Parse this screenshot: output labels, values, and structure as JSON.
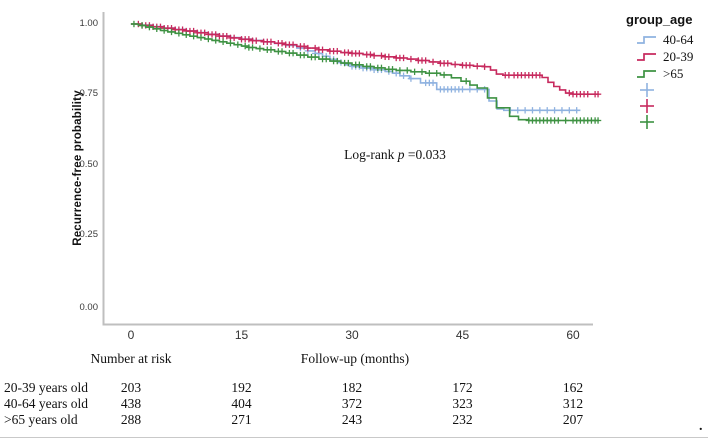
{
  "figure": {
    "footnote_period": "."
  },
  "legend": {
    "title": "group_age",
    "entries": [
      {
        "label": "40-64",
        "color": "#8FB2E0"
      },
      {
        "label": "20-39",
        "color": "#C72A5E"
      },
      {
        "label": ">65",
        "color": "#3E9243"
      }
    ]
  },
  "annotation": {
    "prefix": "Log-rank ",
    "p": "p",
    "value": " =0.033"
  },
  "risk_table": {
    "header": "Number at risk",
    "rows": [
      {
        "label": "20-39 years old",
        "values": [
          "203",
          "192",
          "182",
          "172",
          "162"
        ]
      },
      {
        "label": "40-64 years old",
        "values": [
          "438",
          "404",
          "372",
          "323",
          "312"
        ]
      },
      {
        "label": ">65 years old",
        "values": [
          "288",
          "271",
          "243",
          "232",
          "207"
        ]
      }
    ]
  },
  "chart_data": {
    "type": "line",
    "subtype": "kaplan-meier-step",
    "title": "",
    "xlabel": "Follow-up (months)",
    "ylabel": "Recurrence-free probability",
    "xlim": [
      0,
      63.5
    ],
    "ylim": [
      0,
      1
    ],
    "xticks": [
      "0",
      "15",
      "30",
      "45",
      "60"
    ],
    "xtick_values": [
      0,
      15,
      30,
      45,
      60
    ],
    "yticks": [
      "1.00",
      "0.75",
      "0.50",
      "0.25",
      "0.00"
    ],
    "ytick_values": [
      1.0,
      0.75,
      0.5,
      0.25,
      0.0
    ],
    "grid": false,
    "legend_position": "top-right",
    "axis_color": "#BFBFBF",
    "series": [
      {
        "name": "40-64",
        "color": "#8FB2E0",
        "steps": [
          [
            0,
            1
          ],
          [
            1.5,
            0.996
          ],
          [
            3,
            0.991
          ],
          [
            4.5,
            0.986
          ],
          [
            6,
            0.981
          ],
          [
            7.5,
            0.976
          ],
          [
            9,
            0.97
          ],
          [
            10.5,
            0.964
          ],
          [
            12,
            0.958
          ],
          [
            13.5,
            0.952
          ],
          [
            15,
            0.947
          ],
          [
            16.5,
            0.942
          ],
          [
            18,
            0.937
          ],
          [
            19.5,
            0.931
          ],
          [
            21,
            0.924
          ],
          [
            22.5,
            0.915
          ],
          [
            24,
            0.905
          ],
          [
            25,
            0.896
          ],
          [
            26,
            0.886
          ],
          [
            27,
            0.875
          ],
          [
            28,
            0.864
          ],
          [
            29,
            0.856
          ],
          [
            30,
            0.85
          ],
          [
            31.5,
            0.844
          ],
          [
            33,
            0.838
          ],
          [
            34.5,
            0.832
          ],
          [
            35.5,
            0.826
          ],
          [
            36.5,
            0.817
          ],
          [
            37.8,
            0.807
          ],
          [
            39.3,
            0.792
          ],
          [
            41.5,
            0.769
          ],
          [
            48.6,
            0.728
          ],
          [
            49.7,
            0.7
          ],
          [
            50.6,
            0.695
          ],
          [
            61,
            0.695
          ]
        ],
        "censors": [
          23,
          24,
          25,
          25.5,
          26.5,
          27.5,
          28.5,
          30,
          30.5,
          31,
          31.5,
          32,
          32.5,
          33,
          33.5,
          34,
          35,
          36,
          37,
          38,
          40,
          40.5,
          41,
          42,
          42.5,
          43,
          43.5,
          44,
          44.5,
          45,
          46,
          47,
          48,
          51.5,
          52.5,
          53.5,
          54.5,
          55.5,
          56.5,
          57.5,
          58.5,
          59.5,
          60.5
        ]
      },
      {
        "name": "20-39",
        "color": "#C72A5E",
        "steps": [
          [
            0,
            1
          ],
          [
            1.5,
            0.995
          ],
          [
            3,
            0.99
          ],
          [
            4.5,
            0.985
          ],
          [
            6,
            0.98
          ],
          [
            7.5,
            0.975
          ],
          [
            9,
            0.969
          ],
          [
            10.5,
            0.963
          ],
          [
            12,
            0.957
          ],
          [
            13.5,
            0.951
          ],
          [
            15,
            0.946
          ],
          [
            16.5,
            0.941
          ],
          [
            18,
            0.937
          ],
          [
            19.5,
            0.932
          ],
          [
            21,
            0.927
          ],
          [
            22.5,
            0.921
          ],
          [
            24,
            0.915
          ],
          [
            25.5,
            0.909
          ],
          [
            27,
            0.904
          ],
          [
            28.5,
            0.899
          ],
          [
            30,
            0.896
          ],
          [
            31.5,
            0.892
          ],
          [
            33,
            0.888
          ],
          [
            34.5,
            0.884
          ],
          [
            36,
            0.88
          ],
          [
            37.5,
            0.876
          ],
          [
            39,
            0.871
          ],
          [
            40.5,
            0.866
          ],
          [
            42,
            0.861
          ],
          [
            43.5,
            0.857
          ],
          [
            45,
            0.854
          ],
          [
            46.5,
            0.851
          ],
          [
            48,
            0.849
          ],
          [
            48.8,
            0.837
          ],
          [
            49.6,
            0.823
          ],
          [
            50.5,
            0.819
          ],
          [
            55.8,
            0.811
          ],
          [
            56.6,
            0.794
          ],
          [
            57.4,
            0.779
          ],
          [
            58.2,
            0.767
          ],
          [
            59,
            0.756
          ],
          [
            60,
            0.752
          ],
          [
            63.5,
            0.752
          ]
        ],
        "censors": [
          1,
          1.5,
          2,
          2.5,
          3,
          3.5,
          4,
          4.5,
          5,
          5.5,
          6,
          6.5,
          7,
          7.5,
          8,
          8.5,
          9,
          9.5,
          10,
          10.5,
          11,
          11.5,
          12,
          12.5,
          13,
          13.5,
          14,
          15,
          15.5,
          16,
          16.5,
          17,
          18,
          18.5,
          19,
          20,
          20.5,
          21,
          21.5,
          22,
          23,
          23.5,
          24,
          25,
          25.5,
          26,
          27,
          27.5,
          28,
          29,
          29.5,
          30,
          30.5,
          31,
          32,
          32.5,
          33,
          34,
          34.5,
          35,
          36,
          36.5,
          37,
          38,
          39,
          39.5,
          40,
          41,
          42,
          42.5,
          43,
          44,
          45,
          45.5,
          46,
          47,
          48,
          50.8,
          51.3,
          52,
          52.5,
          53,
          53.5,
          54,
          54.5,
          55,
          55.5,
          59.5,
          60,
          60.5,
          61,
          61.5,
          62,
          63,
          63.4
        ]
      },
      {
        "name": ">65",
        "color": "#3E9243",
        "steps": [
          [
            0,
            1
          ],
          [
            1,
            0.995
          ],
          [
            2,
            0.989
          ],
          [
            3,
            0.983
          ],
          [
            4,
            0.977
          ],
          [
            5,
            0.972
          ],
          [
            6,
            0.967
          ],
          [
            7,
            0.962
          ],
          [
            8,
            0.957
          ],
          [
            9,
            0.952
          ],
          [
            10,
            0.947
          ],
          [
            11,
            0.942
          ],
          [
            12,
            0.937
          ],
          [
            13,
            0.932
          ],
          [
            14,
            0.927
          ],
          [
            15,
            0.922
          ],
          [
            16,
            0.917
          ],
          [
            17,
            0.913
          ],
          [
            18,
            0.909
          ],
          [
            19.5,
            0.903
          ],
          [
            21,
            0.897
          ],
          [
            22.5,
            0.89
          ],
          [
            24,
            0.883
          ],
          [
            25.5,
            0.876
          ],
          [
            27,
            0.869
          ],
          [
            28.5,
            0.862
          ],
          [
            30,
            0.856
          ],
          [
            31.5,
            0.85
          ],
          [
            33,
            0.845
          ],
          [
            34.5,
            0.84
          ],
          [
            36,
            0.836
          ],
          [
            38,
            0.831
          ],
          [
            40,
            0.826
          ],
          [
            42,
            0.82
          ],
          [
            43.5,
            0.81
          ],
          [
            44.8,
            0.798
          ],
          [
            46,
            0.784
          ],
          [
            47,
            0.774
          ],
          [
            48.4,
            0.739
          ],
          [
            49.6,
            0.704
          ],
          [
            51.4,
            0.674
          ],
          [
            52.6,
            0.662
          ],
          [
            54,
            0.659
          ],
          [
            63.5,
            0.659
          ]
        ],
        "censors": [
          0.4,
          1.5,
          2.5,
          3.5,
          4.5,
          5.5,
          6.5,
          7.5,
          8.5,
          9.5,
          10.5,
          11.5,
          12.5,
          13.5,
          14.5,
          15.5,
          16,
          16.5,
          17.5,
          18.5,
          19,
          20,
          20.5,
          21.5,
          22,
          23,
          23.5,
          24.5,
          25,
          26,
          26.5,
          27.5,
          28,
          29,
          29.5,
          30.5,
          31,
          32,
          32.5,
          33.5,
          34,
          35,
          35.5,
          36.5,
          37.5,
          38.5,
          39.5,
          40.5,
          41.5,
          42.5,
          45.5,
          54,
          54.5,
          55,
          55.5,
          56,
          56.5,
          57,
          57.5,
          58,
          59,
          60,
          60.5,
          61,
          61.5,
          62,
          62.5,
          63,
          63.4
        ]
      }
    ],
    "number_at_risk_note": "Number at risk"
  }
}
